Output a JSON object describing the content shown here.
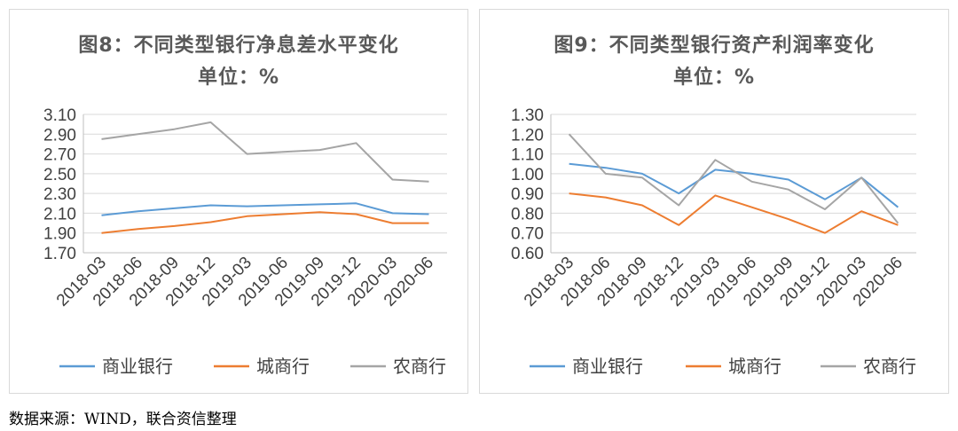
{
  "source_note": "数据来源：WIND，联合资信整理",
  "colors": {
    "商业银行": "#5b9bd5",
    "城商行": "#ed7d31",
    "农商行": "#a5a5a5"
  },
  "chart_data": [
    {
      "type": "line",
      "title": "图8：不同类型银行净息差水平变化",
      "subtitle": "单位：%",
      "categories": [
        "2018-03",
        "2018-06",
        "2018-09",
        "2018-12",
        "2019-03",
        "2019-06",
        "2019-09",
        "2019-12",
        "2020-03",
        "2020-06"
      ],
      "ylim": [
        1.7,
        3.1
      ],
      "yticks": [
        "3.10",
        "2.90",
        "2.70",
        "2.50",
        "2.30",
        "2.10",
        "1.90",
        "1.70"
      ],
      "grid": true,
      "legend": "bottom",
      "series": [
        {
          "name": "商业银行",
          "values": [
            2.08,
            2.12,
            2.15,
            2.18,
            2.17,
            2.18,
            2.19,
            2.2,
            2.1,
            2.09
          ]
        },
        {
          "name": "城商行",
          "values": [
            1.9,
            1.94,
            1.97,
            2.01,
            2.07,
            2.09,
            2.11,
            2.09,
            2.0,
            2.0
          ]
        },
        {
          "name": "农商行",
          "values": [
            2.85,
            2.9,
            2.95,
            3.02,
            2.7,
            2.72,
            2.74,
            2.81,
            2.44,
            2.42
          ]
        }
      ]
    },
    {
      "type": "line",
      "title": "图9：不同类型银行资产利润率变化",
      "subtitle": "单位：%",
      "categories": [
        "2018-03",
        "2018-06",
        "2018-09",
        "2018-12",
        "2019-03",
        "2019-06",
        "2019-09",
        "2019-12",
        "2020-03",
        "2020-06"
      ],
      "ylim": [
        0.6,
        1.3
      ],
      "yticks": [
        "1.30",
        "1.20",
        "1.10",
        "1.00",
        "0.90",
        "0.80",
        "0.70",
        "0.60"
      ],
      "grid": true,
      "legend": "bottom",
      "series": [
        {
          "name": "商业银行",
          "values": [
            1.05,
            1.03,
            1.0,
            0.9,
            1.02,
            1.0,
            0.97,
            0.87,
            0.98,
            0.83
          ]
        },
        {
          "name": "城商行",
          "values": [
            0.9,
            0.88,
            0.84,
            0.74,
            0.89,
            0.83,
            0.77,
            0.7,
            0.81,
            0.74
          ]
        },
        {
          "name": "农商行",
          "values": [
            1.2,
            1.0,
            0.98,
            0.84,
            1.07,
            0.96,
            0.92,
            0.82,
            0.98,
            0.75
          ]
        }
      ]
    }
  ]
}
